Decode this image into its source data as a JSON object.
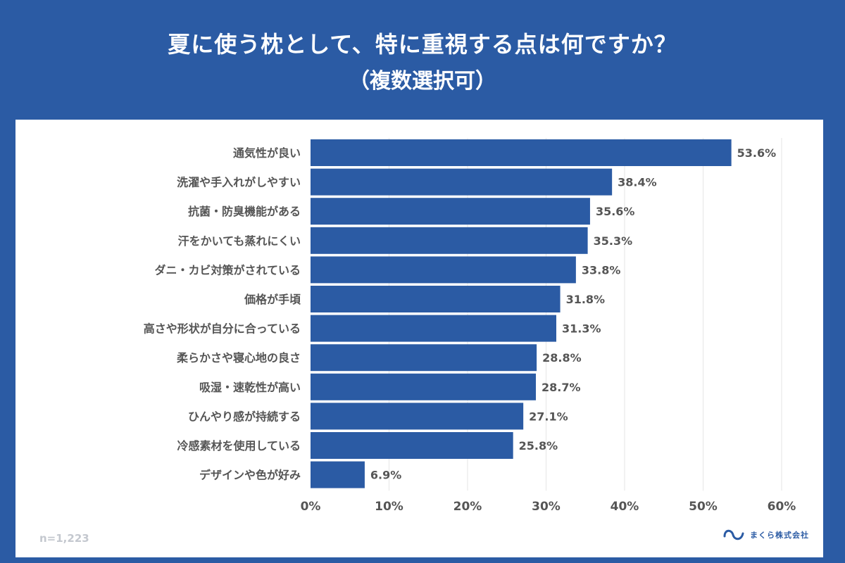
{
  "header": {
    "title": "夏に使う枕として、特に重視する点は何ですか？",
    "subtitle": "（複数選択可）"
  },
  "footer": {
    "sample_size": "n=1,223",
    "company": "まくら株式会社"
  },
  "colors": {
    "header_bg": "#2b5ba4",
    "bar": "#2b5ba4",
    "label_text": "#555555",
    "grid": "#e6e6e6"
  },
  "chart_data": {
    "type": "bar",
    "orientation": "horizontal",
    "categories": [
      "通気性が良い",
      "洗濯や手入れがしやすい",
      "抗菌・防臭機能がある",
      "汗をかいても蒸れにくい",
      "ダニ・カビ対策がされている",
      "価格が手頃",
      "高さや形状が自分に合っている",
      "柔らかさや寝心地の良さ",
      "吸湿・速乾性が高い",
      "ひんやり感が持続する",
      "冷感素材を使用している",
      "デザインや色が好み"
    ],
    "values": [
      53.6,
      38.4,
      35.6,
      35.3,
      33.8,
      31.8,
      31.3,
      28.8,
      28.7,
      27.1,
      25.8,
      6.9
    ],
    "value_labels": [
      "53.6%",
      "38.4%",
      "35.6%",
      "35.3%",
      "33.8%",
      "31.8%",
      "31.3%",
      "28.8%",
      "28.7%",
      "27.1%",
      "25.8%",
      "6.9%"
    ],
    "xlim": [
      0,
      60
    ],
    "xticks": [
      "0%",
      "10%",
      "20%",
      "30%",
      "40%",
      "50%",
      "60%"
    ],
    "grid": true,
    "legend": "none"
  }
}
